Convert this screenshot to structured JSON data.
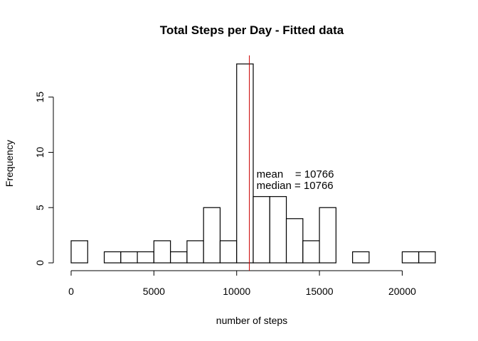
{
  "chart_data": {
    "type": "bar",
    "title": "Total Steps per Day - Fitted data",
    "xlabel": "number of steps",
    "ylabel": "Frequency",
    "xlim": [
      0,
      22000
    ],
    "ylim": [
      0,
      18
    ],
    "x_ticks": [
      0,
      5000,
      10000,
      15000,
      20000
    ],
    "y_ticks": [
      0,
      5,
      10,
      15
    ],
    "bins": [
      {
        "start": 0,
        "end": 1000,
        "count": 2
      },
      {
        "start": 1000,
        "end": 2000,
        "count": 0
      },
      {
        "start": 2000,
        "end": 3000,
        "count": 1
      },
      {
        "start": 3000,
        "end": 4000,
        "count": 1
      },
      {
        "start": 4000,
        "end": 5000,
        "count": 1
      },
      {
        "start": 5000,
        "end": 6000,
        "count": 2
      },
      {
        "start": 6000,
        "end": 7000,
        "count": 1
      },
      {
        "start": 7000,
        "end": 8000,
        "count": 2
      },
      {
        "start": 8000,
        "end": 9000,
        "count": 5
      },
      {
        "start": 9000,
        "end": 10000,
        "count": 2
      },
      {
        "start": 10000,
        "end": 11000,
        "count": 18
      },
      {
        "start": 11000,
        "end": 12000,
        "count": 6
      },
      {
        "start": 12000,
        "end": 13000,
        "count": 6
      },
      {
        "start": 13000,
        "end": 14000,
        "count": 4
      },
      {
        "start": 14000,
        "end": 15000,
        "count": 2
      },
      {
        "start": 15000,
        "end": 16000,
        "count": 5
      },
      {
        "start": 16000,
        "end": 17000,
        "count": 0
      },
      {
        "start": 17000,
        "end": 18000,
        "count": 1
      },
      {
        "start": 18000,
        "end": 19000,
        "count": 0
      },
      {
        "start": 19000,
        "end": 20000,
        "count": 0
      },
      {
        "start": 20000,
        "end": 21000,
        "count": 1
      },
      {
        "start": 21000,
        "end": 22000,
        "count": 1
      }
    ],
    "mean_line": {
      "value": 10766,
      "color": "#cc0000"
    },
    "annotations": [
      {
        "text": "mean    = 10766",
        "x": 11200,
        "y": 7.7
      },
      {
        "text": "median = 10766",
        "x": 11200,
        "y": 6.7
      }
    ],
    "grid": false,
    "legend": "none"
  }
}
